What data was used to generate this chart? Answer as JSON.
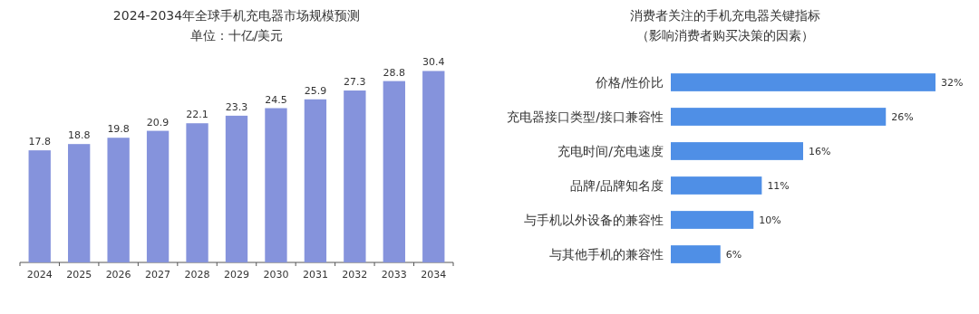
{
  "chart_data": [
    {
      "type": "bar",
      "title": "2024-2034年全球手机充电器市场规模预测",
      "subtitle": "单位：十亿/美元",
      "categories": [
        "2024",
        "2025",
        "2026",
        "2027",
        "2028",
        "2029",
        "2030",
        "2031",
        "2032",
        "2033",
        "2034"
      ],
      "values": [
        17.8,
        18.8,
        19.8,
        20.9,
        22.1,
        23.3,
        24.5,
        25.9,
        27.3,
        28.8,
        30.4
      ],
      "color": "#8593dc",
      "data_labels": true
    },
    {
      "type": "bar",
      "orientation": "horizontal",
      "title": "消费者关注的手机充电器关键指标",
      "subtitle": "（影响消费者购买决策的因素）",
      "categories": [
        "价格/性价比",
        "充电器接口类型/接口兼容性",
        "充电时间/充电速度",
        "品牌/品牌知名度",
        "与手机以外设备的兼容性",
        "与其他手机的兼容性"
      ],
      "values": [
        32,
        26,
        16,
        11,
        10,
        6
      ],
      "value_labels": [
        "32%",
        "26%",
        "16%",
        "11%",
        "10%",
        "6%"
      ],
      "color": "#4f8fe6"
    }
  ]
}
